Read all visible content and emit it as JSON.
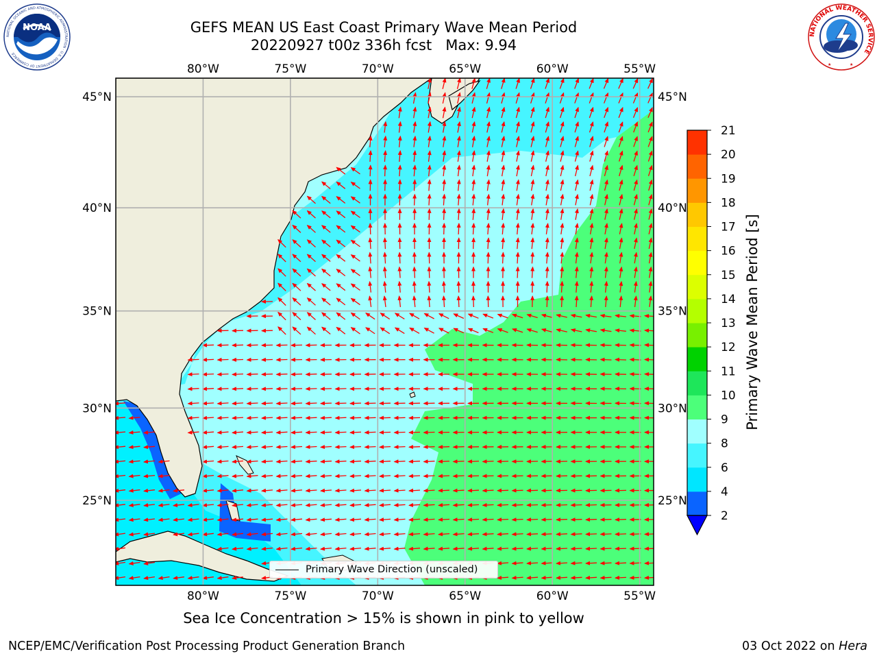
{
  "header": {
    "title_line1": "GEFS MEAN US East Coast Primary Wave Mean Period",
    "title_line2": "20220927 t00z 336h fcst   Max: 9.94"
  },
  "logos": {
    "left": "noaa-logo",
    "left_text": "NOAA",
    "left_ring_text": "NATIONAL OCEANIC AND ATMOSPHERIC ADMINISTRATION · U.S. DEPARTMENT OF COMMERCE",
    "right": "nws-logo",
    "right_ring_text": "NATIONAL WEATHER SERVICE"
  },
  "map": {
    "lon_ticks": [
      "80°W",
      "75°W",
      "70°W",
      "65°W",
      "60°W",
      "55°W"
    ],
    "lat_ticks": [
      "45°N",
      "40°N",
      "35°N",
      "30°N",
      "25°N"
    ],
    "lon_values": [
      -80,
      -75,
      -70,
      -65,
      -60,
      -55
    ],
    "lat_values": [
      45,
      40,
      35,
      30,
      25
    ],
    "extent": {
      "lon": [
        -85,
        -54.2
      ],
      "lat": [
        20.2,
        45.8
      ]
    },
    "grid": true,
    "land_color": "#efeedd",
    "arrow_color": "#ff0000",
    "legend_label": "Primary Wave Direction (unscaled)",
    "legend_placement": "bottom-center"
  },
  "colorbar": {
    "label": "Primary Wave Mean Period [s]",
    "ticks": [
      "2",
      "4",
      "6",
      "8",
      "9",
      "10",
      "11",
      "12",
      "13",
      "14",
      "15",
      "16",
      "17",
      "18",
      "19",
      "20",
      "21"
    ],
    "colors": [
      "#0a64ff",
      "#00e6ff",
      "#46f5ff",
      "#a0ffff",
      "#4cff7a",
      "#1ee65a",
      "#00d200",
      "#78f000",
      "#b4ff00",
      "#dcff00",
      "#ffff00",
      "#ffe600",
      "#ffc800",
      "#ff9600",
      "#ff6400",
      "#ff3200"
    ],
    "under_color": "#0000ff"
  },
  "subtitle": "Sea Ice Concentration > 15% is shown in pink to yellow",
  "footer": {
    "left": "NCEP/EMC/Verification Post Processing Product Generation Branch",
    "right_date": "03 Oct 2022 on ",
    "right_host": "Hera"
  }
}
